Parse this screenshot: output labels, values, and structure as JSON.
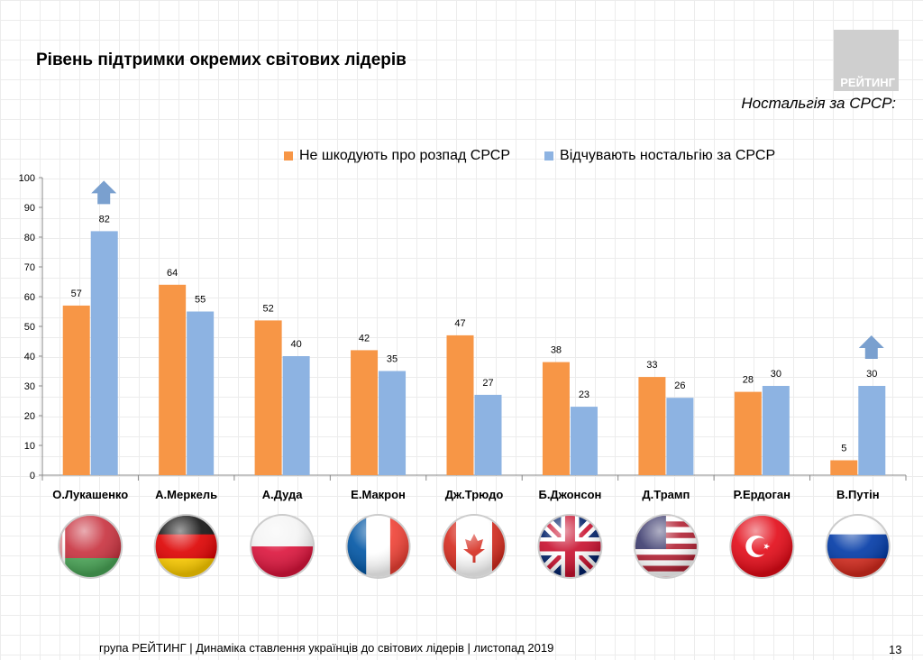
{
  "header": {
    "title": "Рівень підтримки окремих світових лідерів",
    "logo_text": "РЕЙТИНГ",
    "subtitle": "Ностальгія за СРСР:"
  },
  "chart_data": {
    "type": "bar",
    "title": "",
    "categories": [
      "О.Лукашенко",
      "А.Меркель",
      "А.Дуда",
      "Е.Макрон",
      "Дж.Трюдо",
      "Б.Джонсон",
      "Д.Трамп",
      "Р.Ердоган",
      "В.Путін"
    ],
    "series": [
      {
        "name": "Не шкодують про розпад СРСР",
        "color": "#f79646",
        "values": [
          57,
          64,
          52,
          42,
          47,
          38,
          33,
          28,
          5
        ]
      },
      {
        "name": "Відчувають ностальгію за СРСР",
        "color": "#8db3e2",
        "values": [
          82,
          55,
          40,
          35,
          27,
          23,
          26,
          30,
          30
        ]
      }
    ],
    "ylim": [
      0,
      100
    ],
    "yticks": [
      0,
      10,
      20,
      30,
      40,
      50,
      60,
      70,
      80,
      90,
      100
    ],
    "legend": "top",
    "grid": false,
    "annotations": [
      {
        "type": "up-arrow",
        "category": "О.Лукашенко"
      },
      {
        "type": "up-arrow",
        "category": "В.Путін"
      }
    ],
    "flags": [
      "belarus",
      "germany",
      "poland",
      "france",
      "canada",
      "uk",
      "usa",
      "turkey",
      "russia"
    ]
  },
  "footer": {
    "text": "група РЕЙТИНГ | Динаміка ставлення українців до світових лідерів  | листопад 2019",
    "page": "13"
  }
}
